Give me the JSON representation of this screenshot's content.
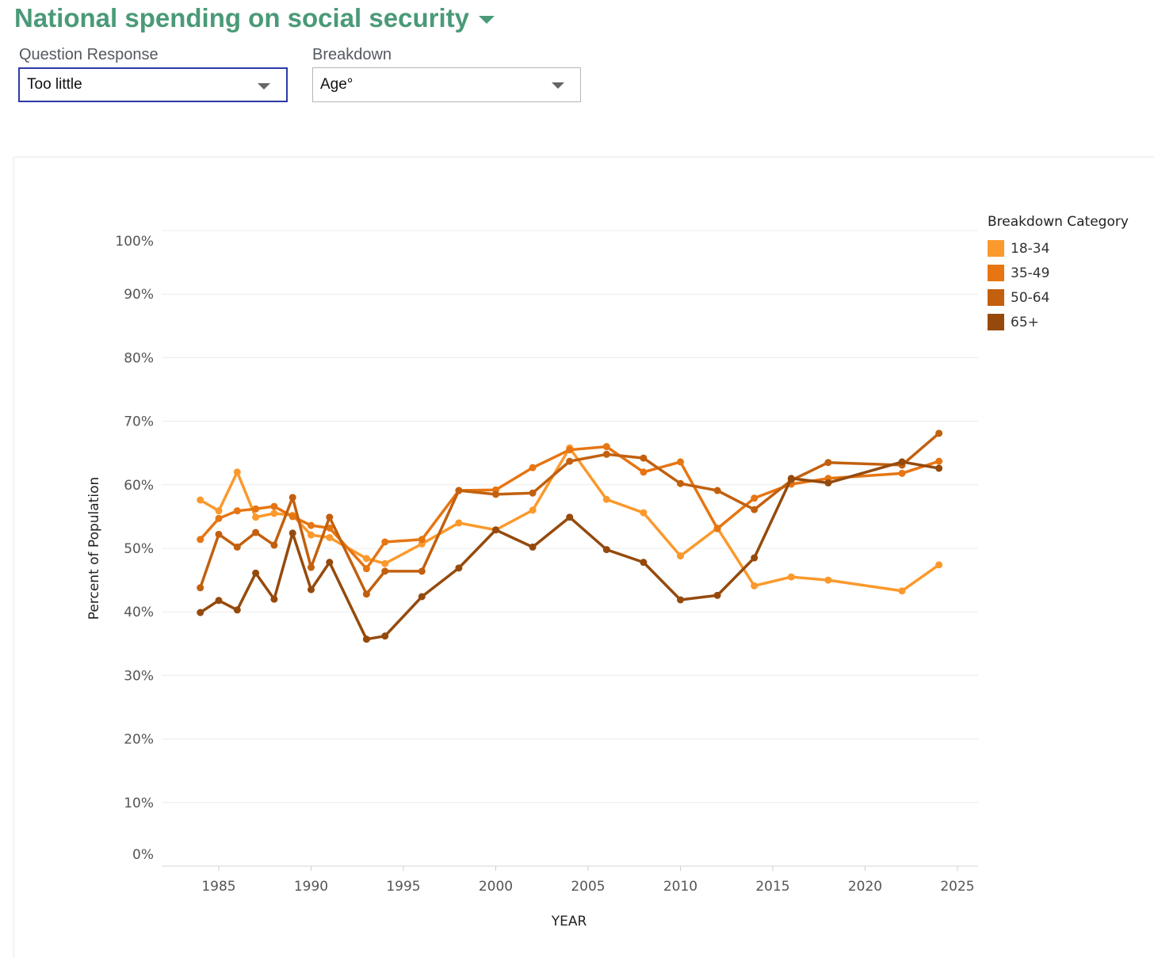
{
  "header": {
    "title": "National spending on social security"
  },
  "filters": {
    "question_label": "Question Response",
    "question_value": "Too little",
    "breakdown_label": "Breakdown",
    "breakdown_value": "Age°"
  },
  "chart_data": {
    "type": "line",
    "title": "National spending on social security",
    "xlabel": "YEAR",
    "ylabel": "Percent of Population",
    "xlim": [
      1980,
      2025
    ],
    "ylim": [
      0,
      100
    ],
    "xticks": [
      1985,
      1990,
      1995,
      2000,
      2005,
      2010,
      2015,
      2020,
      2025
    ],
    "yticks": [
      0,
      10,
      20,
      30,
      40,
      50,
      60,
      70,
      80,
      90,
      100
    ],
    "grid": true,
    "legend_title": "Breakdown Category",
    "legend_position": "right",
    "x": [
      1984,
      1985,
      1986,
      1987,
      1988,
      1989,
      1990,
      1991,
      1993,
      1994,
      1996,
      1998,
      2000,
      2002,
      2004,
      2006,
      2008,
      2010,
      2012,
      2014,
      2016,
      2018,
      2022,
      2024
    ],
    "series": [
      {
        "name": "18-34",
        "color": "#FB992C",
        "values": [
          57.6,
          55.9,
          62.0,
          54.9,
          55.5,
          55.2,
          52.1,
          51.7,
          48.4,
          47.6,
          50.7,
          54.0,
          52.9,
          56.0,
          65.8,
          57.7,
          55.6,
          48.8,
          53.2,
          44.1,
          45.5,
          45.0,
          43.3,
          47.4
        ]
      },
      {
        "name": "35-49",
        "color": "#E67512",
        "values": [
          51.4,
          54.7,
          55.9,
          56.2,
          56.6,
          55.0,
          53.6,
          53.2,
          46.8,
          51.0,
          51.4,
          59.1,
          59.2,
          62.7,
          65.5,
          66.0,
          62.0,
          63.6,
          53.1,
          57.9,
          60.1,
          61.0,
          61.8,
          63.7
        ]
      },
      {
        "name": "50-64",
        "color": "#C2600E",
        "values": [
          43.8,
          52.2,
          50.2,
          52.5,
          50.5,
          58.0,
          47.0,
          54.9,
          42.8,
          46.4,
          46.4,
          59.1,
          58.5,
          58.7,
          63.7,
          64.8,
          64.2,
          60.2,
          59.1,
          56.1,
          60.7,
          63.5,
          63.1,
          68.1
        ]
      },
      {
        "name": "65+",
        "color": "#954A0C",
        "values": [
          39.9,
          41.8,
          40.3,
          46.1,
          42.0,
          52.4,
          43.5,
          47.8,
          35.7,
          36.2,
          42.4,
          46.9,
          52.9,
          50.2,
          54.9,
          49.8,
          47.8,
          41.9,
          42.6,
          48.5,
          61.0,
          60.3,
          63.6,
          62.6
        ]
      }
    ]
  }
}
